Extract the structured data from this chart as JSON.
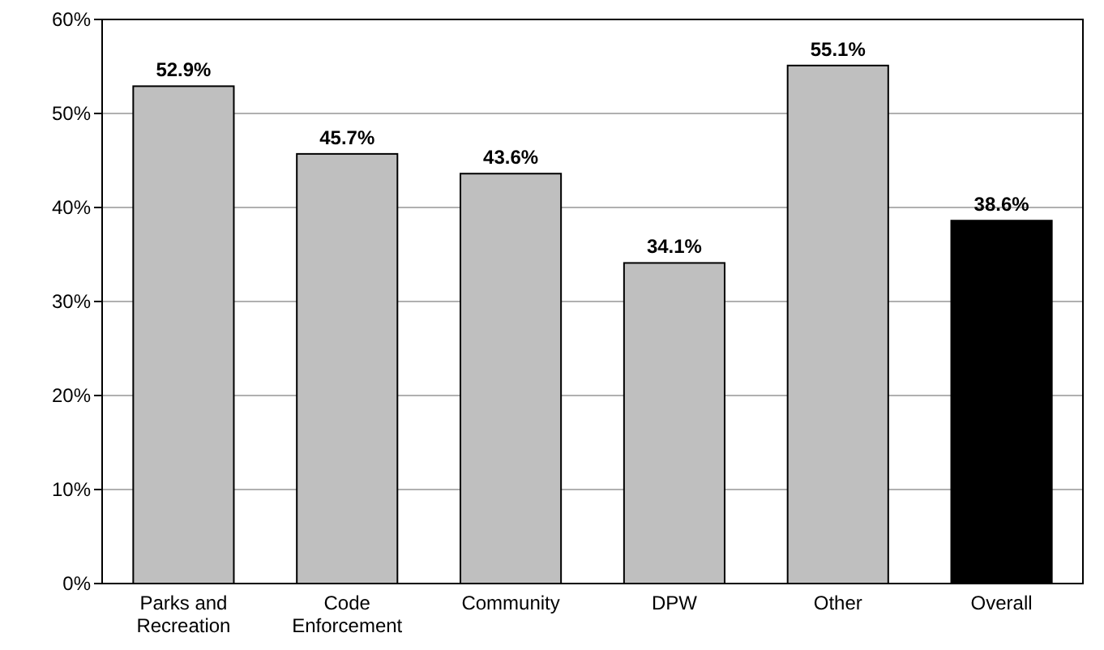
{
  "chart_data": {
    "type": "bar",
    "categories": [
      "Parks and Recreation",
      "Code Enforcement",
      "Community",
      "DPW",
      "Other",
      "Overall"
    ],
    "values": [
      52.9,
      45.7,
      43.6,
      34.1,
      55.1,
      38.6
    ],
    "colors": [
      "#bfbfbf",
      "#bfbfbf",
      "#bfbfbf",
      "#bfbfbf",
      "#bfbfbf",
      "#000000"
    ],
    "value_labels": [
      "52.9%",
      "45.7%",
      "43.6%",
      "34.1%",
      "55.1%",
      "38.6%"
    ],
    "ylim": [
      0,
      60
    ],
    "yticks": [
      {
        "value": 0,
        "label": "0%"
      },
      {
        "value": 10,
        "label": "10%"
      },
      {
        "value": 20,
        "label": "20%"
      },
      {
        "value": 30,
        "label": "30%"
      },
      {
        "value": 40,
        "label": "40%"
      },
      {
        "value": 50,
        "label": "50%"
      },
      {
        "value": 60,
        "label": "60%"
      }
    ],
    "grid": "y"
  }
}
